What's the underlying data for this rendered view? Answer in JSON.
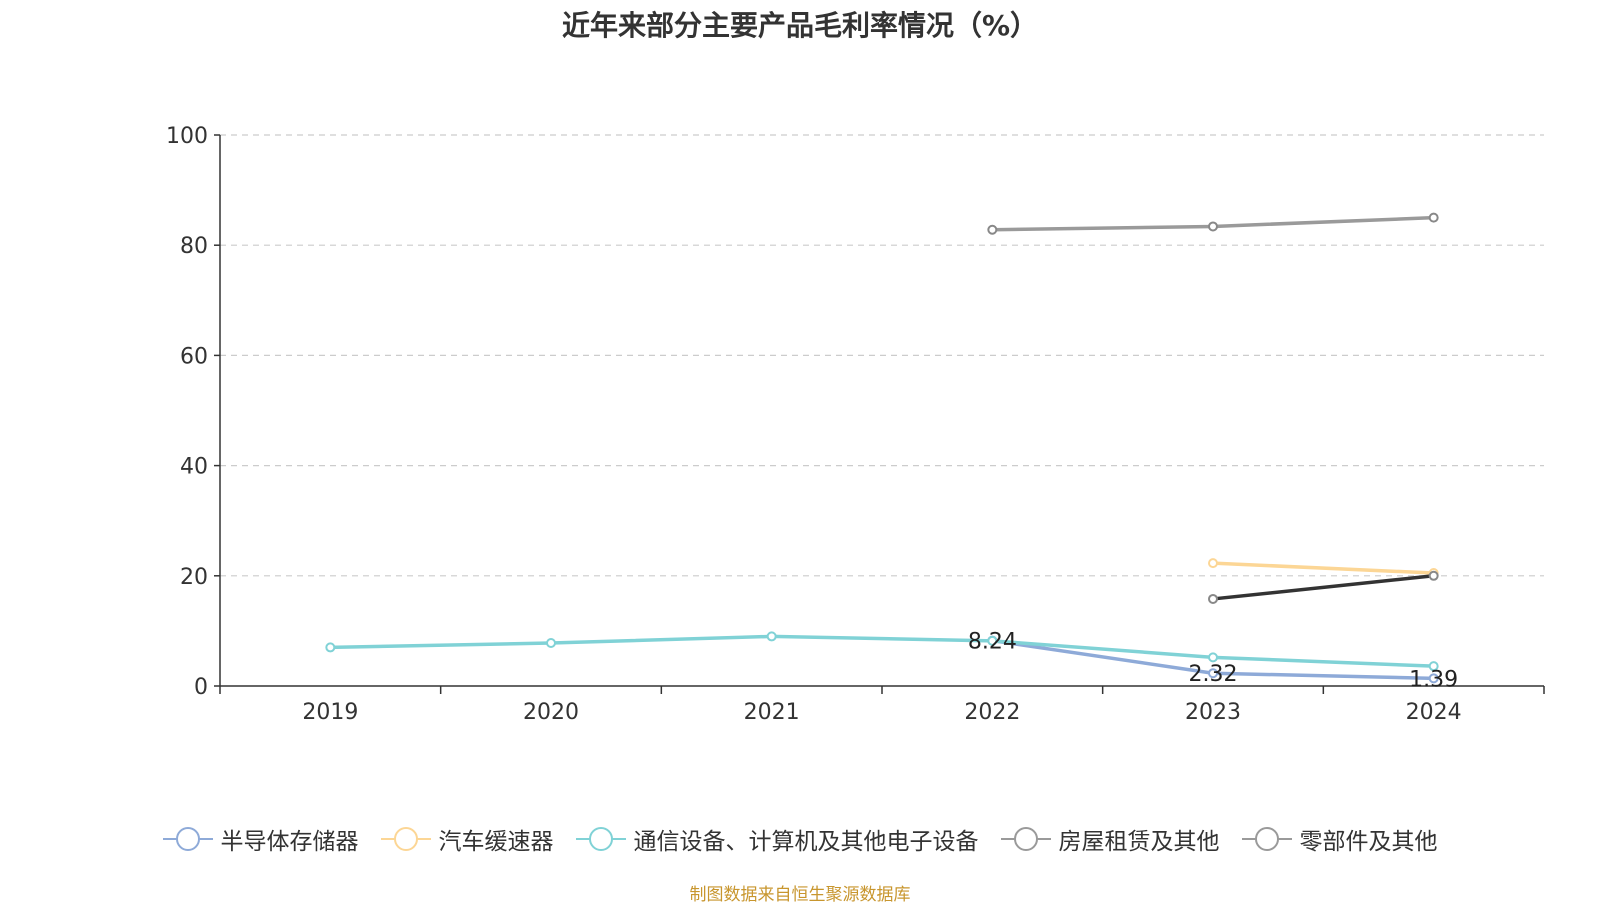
{
  "chart_data": {
    "type": "line",
    "title": "近年来部分主要产品毛利率情况（%）",
    "categories": [
      "2019",
      "2020",
      "2021",
      "2022",
      "2023",
      "2024"
    ],
    "ylim": [
      0,
      100
    ],
    "yticks": [
      0,
      20,
      40,
      60,
      80,
      100
    ],
    "grid": true,
    "legend_position": "bottom",
    "series": [
      {
        "name": "半导体存储器",
        "color": "#8eaad8",
        "values": [
          null,
          null,
          null,
          8.24,
          2.32,
          1.39
        ],
        "labels": [
          null,
          null,
          null,
          "8.24",
          "2.32",
          "1.39"
        ]
      },
      {
        "name": "汽车缓速器",
        "color": "#fcd695",
        "values": [
          null,
          null,
          null,
          null,
          22.3,
          20.5
        ],
        "labels": [
          null,
          null,
          null,
          null,
          null,
          null
        ]
      },
      {
        "name": "通信设备、计算机及其他电子设备",
        "color": "#80d2d6",
        "values": [
          7.0,
          7.8,
          9.0,
          8.2,
          5.2,
          3.6
        ],
        "labels": [
          null,
          null,
          null,
          null,
          null,
          null
        ]
      },
      {
        "name": "房屋租赁及其他",
        "color": "#333333",
        "values": [
          null,
          null,
          null,
          null,
          15.8,
          20.0
        ],
        "labels": [
          null,
          null,
          null,
          null,
          null,
          null
        ]
      },
      {
        "name": "零部件及其他",
        "color": "#9a9a9a",
        "values": [
          null,
          null,
          null,
          82.8,
          83.4,
          85.0
        ],
        "labels": [
          null,
          null,
          null,
          null,
          null,
          null
        ]
      }
    ]
  },
  "legend_icon_colors": [
    "#8eaad8",
    "#fcd695",
    "#80d2d6",
    "#9a9a9a",
    "#9a9a9a"
  ],
  "source_text": "制图数据来自恒生聚源数据库"
}
